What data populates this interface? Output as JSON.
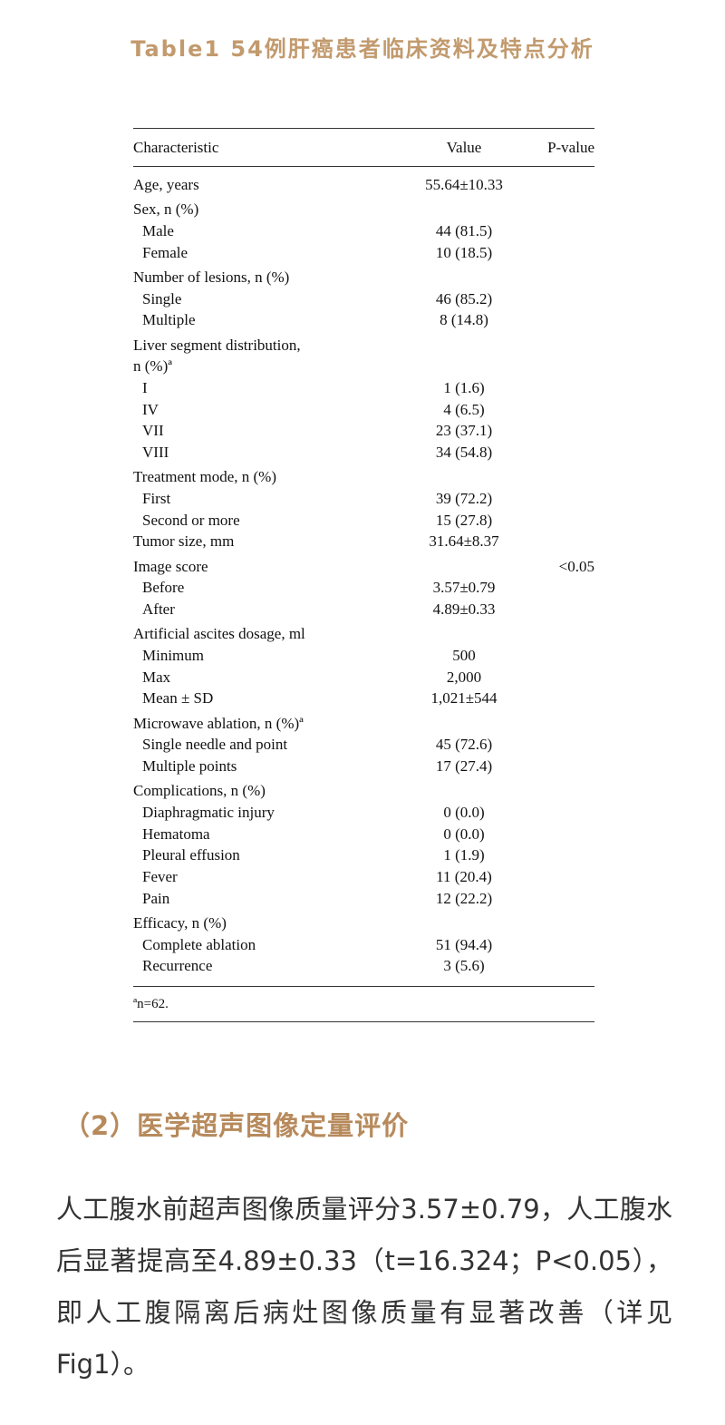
{
  "title": "Table1 54例肝癌患者临床资料及特点分析",
  "table": {
    "headers": [
      "Characteristic",
      "Value",
      "P-value"
    ],
    "rows": [
      {
        "kind": "field",
        "label": "Age, years",
        "value": "55.64±10.33",
        "p": ""
      },
      {
        "kind": "category",
        "label": "Sex, n (%)",
        "value": "",
        "p": ""
      },
      {
        "kind": "item",
        "label": "Male",
        "value": "44 (81.5)",
        "p": ""
      },
      {
        "kind": "item",
        "label": "Female",
        "value": "10 (18.5)",
        "p": ""
      },
      {
        "kind": "category",
        "label": "Number of lesions, n (%)",
        "value": "",
        "p": ""
      },
      {
        "kind": "item",
        "label": "Single",
        "value": "46 (85.2)",
        "p": ""
      },
      {
        "kind": "item",
        "label": "Multiple",
        "value": "8 (14.8)",
        "p": ""
      },
      {
        "kind": "category",
        "label": "Liver segment distribution,",
        "value": "",
        "p": ""
      },
      {
        "kind": "field",
        "label": "n (%)ª",
        "value": "",
        "p": ""
      },
      {
        "kind": "item",
        "label": "I",
        "value": "1 (1.6)",
        "p": ""
      },
      {
        "kind": "item",
        "label": "IV",
        "value": "4 (6.5)",
        "p": ""
      },
      {
        "kind": "item",
        "label": "VII",
        "value": "23 (37.1)",
        "p": ""
      },
      {
        "kind": "item",
        "label": "VIII",
        "value": "34 (54.8)",
        "p": ""
      },
      {
        "kind": "category",
        "label": "Treatment mode, n (%)",
        "value": "",
        "p": ""
      },
      {
        "kind": "item",
        "label": "First",
        "value": "39 (72.2)",
        "p": ""
      },
      {
        "kind": "item",
        "label": "Second or more",
        "value": "15 (27.8)",
        "p": ""
      },
      {
        "kind": "field",
        "label": "Tumor size, mm",
        "value": "31.64±8.37",
        "p": ""
      },
      {
        "kind": "category",
        "label": "Image score",
        "value": "",
        "p": "<0.05"
      },
      {
        "kind": "item",
        "label": "Before",
        "value": "3.57±0.79",
        "p": ""
      },
      {
        "kind": "item",
        "label": "After",
        "value": "4.89±0.33",
        "p": ""
      },
      {
        "kind": "category",
        "label": "Artificial ascites dosage, ml",
        "value": "",
        "p": ""
      },
      {
        "kind": "item",
        "label": "Minimum",
        "value": "500",
        "p": ""
      },
      {
        "kind": "item",
        "label": "Max",
        "value": "2,000",
        "p": ""
      },
      {
        "kind": "item",
        "label": "Mean ± SD",
        "value": "1,021±544",
        "p": ""
      },
      {
        "kind": "category",
        "label": "Microwave ablation, n (%)ª",
        "value": "",
        "p": ""
      },
      {
        "kind": "item",
        "label": "Single needle and point",
        "value": "45 (72.6)",
        "p": ""
      },
      {
        "kind": "item",
        "label": "Multiple points",
        "value": "17 (27.4)",
        "p": ""
      },
      {
        "kind": "category",
        "label": "Complications, n (%)",
        "value": "",
        "p": ""
      },
      {
        "kind": "item",
        "label": "Diaphragmatic injury",
        "value": "0 (0.0)",
        "p": ""
      },
      {
        "kind": "item",
        "label": "Hematoma",
        "value": "0 (0.0)",
        "p": ""
      },
      {
        "kind": "item",
        "label": "Pleural effusion",
        "value": "1 (1.9)",
        "p": ""
      },
      {
        "kind": "item",
        "label": "Fever",
        "value": "11 (20.4)",
        "p": ""
      },
      {
        "kind": "item",
        "label": "Pain",
        "value": "12 (22.2)",
        "p": ""
      },
      {
        "kind": "category",
        "label": "Efficacy, n (%)",
        "value": "",
        "p": ""
      },
      {
        "kind": "item",
        "label": "Complete ablation",
        "value": "51 (94.4)",
        "p": ""
      },
      {
        "kind": "item",
        "label": "Recurrence",
        "value": "3 (5.6)",
        "p": ""
      }
    ],
    "footnote": "ªn=62."
  },
  "section_heading": "（2）医学超声图像定量评价",
  "paragraph": "人工腹水前超声图像质量评分3.57±0.79，人工腹水后显著提高至4.89±0.33（t=16.324；P<0.05），即人工腹隔离后病灶图像质量有显著改善（详见Fig1）。",
  "colors": {
    "accent": "#c29a6e",
    "heading": "#b78a5c",
    "text": "#333333"
  }
}
